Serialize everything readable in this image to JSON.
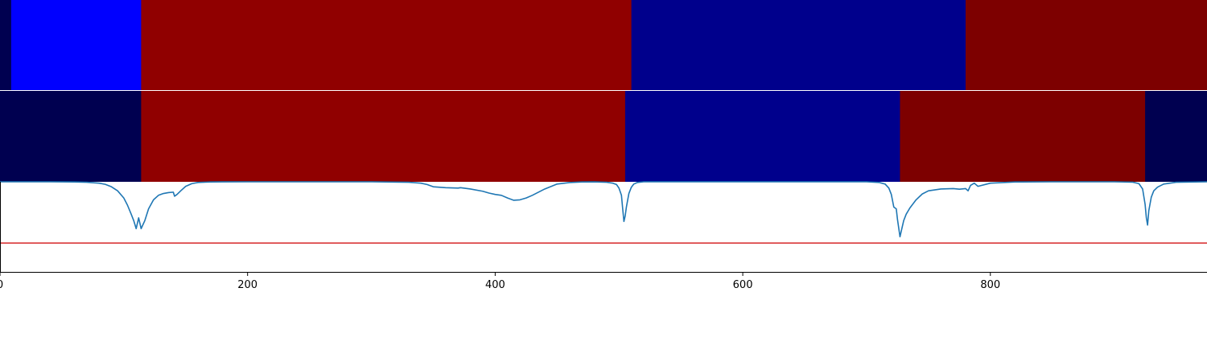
{
  "chart_data": [
    {
      "type": "heatmap",
      "panel": "top-strip",
      "segments": [
        {
          "start": 0,
          "end": 9,
          "color": "#000050"
        },
        {
          "start": 9,
          "end": 114,
          "color": "#0000ff"
        },
        {
          "start": 114,
          "end": 510,
          "color": "#900000"
        },
        {
          "start": 510,
          "end": 780,
          "color": "#00008c"
        },
        {
          "start": 780,
          "end": 975,
          "color": "#7d0000"
        }
      ]
    },
    {
      "type": "heatmap",
      "panel": "middle-strip",
      "segments": [
        {
          "start": 0,
          "end": 114,
          "color": "#000050"
        },
        {
          "start": 114,
          "end": 505,
          "color": "#900000"
        },
        {
          "start": 505,
          "end": 727,
          "color": "#00008c"
        },
        {
          "start": 727,
          "end": 925,
          "color": "#7d0000"
        },
        {
          "start": 925,
          "end": 975,
          "color": "#000050"
        }
      ]
    },
    {
      "type": "line",
      "panel": "bottom-plot",
      "xlim": [
        0,
        975
      ],
      "ylim": [
        0,
        1
      ],
      "xticks": [
        "0",
        "200",
        "400",
        "600",
        "800"
      ],
      "xtick_values": [
        0,
        200,
        400,
        600,
        800
      ],
      "grid": false,
      "threshold": {
        "y": 0.32,
        "color": "#d62728"
      },
      "series": [
        {
          "color": "#1f77b4",
          "x": [
            0,
            40,
            60,
            70,
            80,
            85,
            90,
            95,
            100,
            103,
            106,
            108,
            110,
            112,
            114,
            117,
            120,
            124,
            128,
            132,
            136,
            140,
            141,
            143,
            146,
            150,
            155,
            160,
            170,
            180,
            200,
            250,
            300,
            330,
            340,
            345,
            350,
            360,
            370,
            372,
            380,
            390,
            395,
            400,
            405,
            410,
            415,
            420,
            425,
            430,
            440,
            450,
            460,
            470,
            480,
            490,
            495,
            498,
            500,
            502,
            503,
            504,
            505,
            506,
            508,
            510,
            512,
            515,
            520,
            530,
            550,
            600,
            650,
            700,
            710,
            715,
            718,
            720,
            722,
            724,
            725,
            727,
            728,
            730,
            732,
            735,
            740,
            745,
            750,
            760,
            770,
            775,
            780,
            782,
            784,
            787,
            790,
            800,
            820,
            850,
            880,
            900,
            915,
            920,
            923,
            925,
            926,
            927,
            928,
            930,
            932,
            935,
            940,
            950,
            975
          ],
          "y": [
            1.0,
            1.0,
            0.998,
            0.995,
            0.985,
            0.972,
            0.945,
            0.9,
            0.82,
            0.74,
            0.64,
            0.57,
            0.48,
            0.6,
            0.48,
            0.57,
            0.7,
            0.8,
            0.85,
            0.87,
            0.88,
            0.885,
            0.84,
            0.86,
            0.9,
            0.95,
            0.98,
            0.993,
            0.998,
            0.999,
            1.0,
            1.0,
            1.0,
            0.995,
            0.985,
            0.97,
            0.945,
            0.935,
            0.93,
            0.935,
            0.92,
            0.895,
            0.875,
            0.86,
            0.85,
            0.82,
            0.795,
            0.8,
            0.82,
            0.85,
            0.92,
            0.975,
            0.992,
            0.998,
            0.999,
            0.995,
            0.985,
            0.97,
            0.93,
            0.85,
            0.7,
            0.56,
            0.62,
            0.72,
            0.87,
            0.94,
            0.975,
            0.993,
            1.0,
            1.0,
            1.0,
            1.0,
            1.0,
            1.0,
            0.993,
            0.975,
            0.93,
            0.86,
            0.72,
            0.7,
            0.58,
            0.39,
            0.45,
            0.57,
            0.64,
            0.71,
            0.8,
            0.865,
            0.9,
            0.92,
            0.925,
            0.918,
            0.925,
            0.9,
            0.96,
            0.985,
            0.95,
            0.985,
            0.998,
            1.0,
            1.0,
            1.0,
            0.996,
            0.98,
            0.92,
            0.75,
            0.6,
            0.52,
            0.68,
            0.83,
            0.9,
            0.94,
            0.975,
            0.995,
            1.0
          ]
        }
      ]
    }
  ]
}
